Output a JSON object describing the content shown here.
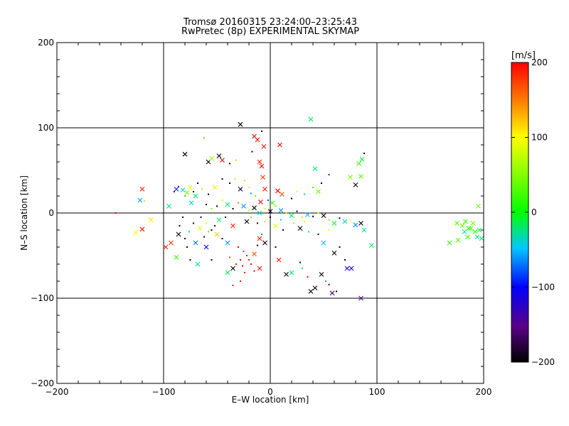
{
  "chart_data": {
    "type": "scatter",
    "title": "Tromsø 20160315 23:24:00–23:25:43",
    "subtitle": "RwPretec (8p) EXPERIMENTAL SKYMAP",
    "xlabel": "E–W location [km]",
    "ylabel": "N–S location [km]",
    "xlim": [
      -200,
      200
    ],
    "ylim": [
      -200,
      200
    ],
    "xticks": [
      -200,
      -100,
      0,
      100,
      200
    ],
    "yticks": [
      -200,
      -100,
      0,
      100,
      200
    ],
    "grid": true,
    "colorbar": {
      "label": "[m/s]",
      "min": -200,
      "max": 200,
      "ticks": [
        -200,
        -100,
        0,
        100,
        200
      ],
      "colormap": "rainbow (black-purple-blue-cyan-green-yellow-red)"
    },
    "markers": [
      "dot",
      "x"
    ],
    "points": [
      [
        -145,
        0,
        200,
        "d"
      ],
      [
        -120,
        28,
        190,
        "x"
      ],
      [
        -122,
        15,
        -60,
        "x"
      ],
      [
        -118,
        14,
        60,
        "d"
      ],
      [
        -112,
        -8,
        110,
        "x"
      ],
      [
        -120,
        -19,
        190,
        "x"
      ],
      [
        -126,
        -23,
        100,
        "x"
      ],
      [
        -98,
        -40,
        190,
        "x"
      ],
      [
        -93,
        -35,
        180,
        "x"
      ],
      [
        -88,
        -52,
        20,
        "x"
      ],
      [
        -95,
        8,
        -30,
        "x"
      ],
      [
        -88,
        28,
        -90,
        "x"
      ],
      [
        -90,
        25,
        -100,
        "d"
      ],
      [
        -86,
        31,
        -150,
        "d"
      ],
      [
        -82,
        27,
        -40,
        "x"
      ],
      [
        -80,
        20,
        -30,
        "d"
      ],
      [
        -78,
        24,
        50,
        "x"
      ],
      [
        -75,
        30,
        90,
        "x"
      ],
      [
        -72,
        25,
        -200,
        "d"
      ],
      [
        -70,
        20,
        -20,
        "x"
      ],
      [
        -80,
        69,
        -200,
        "x"
      ],
      [
        -62,
        88,
        150,
        "d"
      ],
      [
        -58,
        60,
        -200,
        "x"
      ],
      [
        -55,
        64,
        60,
        "x"
      ],
      [
        -48,
        67,
        -200,
        "x"
      ],
      [
        -45,
        62,
        200,
        "x"
      ],
      [
        -38,
        58,
        -200,
        "d"
      ],
      [
        -32,
        62,
        120,
        "d"
      ],
      [
        -28,
        104,
        -200,
        "x"
      ],
      [
        -17,
        72,
        -200,
        "d"
      ],
      [
        -15,
        90,
        200,
        "x"
      ],
      [
        -12,
        86,
        190,
        "x"
      ],
      [
        -6,
        78,
        190,
        "x"
      ],
      [
        -8,
        96,
        -200,
        "d"
      ],
      [
        -10,
        60,
        190,
        "x"
      ],
      [
        -8,
        55,
        200,
        "x"
      ],
      [
        -7,
        42,
        180,
        "x"
      ],
      [
        -5,
        28,
        190,
        "x"
      ],
      [
        -9,
        13,
        200,
        "x"
      ],
      [
        9,
        80,
        200,
        "x"
      ],
      [
        7,
        26,
        200,
        "x"
      ],
      [
        11,
        22,
        170,
        "x"
      ],
      [
        -20,
        30,
        100,
        "d"
      ],
      [
        -18,
        23,
        -60,
        "d"
      ],
      [
        -14,
        20,
        40,
        "d"
      ],
      [
        20,
        17,
        -200,
        "d"
      ],
      [
        25,
        25,
        90,
        "d"
      ],
      [
        32,
        22,
        -20,
        "d"
      ],
      [
        40,
        30,
        20,
        "d"
      ],
      [
        45,
        25,
        40,
        "x"
      ],
      [
        38,
        110,
        -20,
        "x"
      ],
      [
        42,
        52,
        -20,
        "x"
      ],
      [
        48,
        35,
        -200,
        "d"
      ],
      [
        55,
        45,
        -150,
        "d"
      ],
      [
        75,
        42,
        40,
        "x"
      ],
      [
        85,
        43,
        30,
        "x"
      ],
      [
        83,
        58,
        20,
        "x"
      ],
      [
        86,
        63,
        -10,
        "x"
      ],
      [
        88,
        70,
        -200,
        "d"
      ],
      [
        80,
        33,
        -200,
        "x"
      ],
      [
        -60,
        10,
        -200,
        "d"
      ],
      [
        -55,
        5,
        50,
        "d"
      ],
      [
        -50,
        8,
        -200,
        "d"
      ],
      [
        -45,
        15,
        110,
        "d"
      ],
      [
        -40,
        10,
        -20,
        "x"
      ],
      [
        -35,
        5,
        -200,
        "d"
      ],
      [
        -30,
        12,
        150,
        "d"
      ],
      [
        -25,
        8,
        -60,
        "x"
      ],
      [
        -20,
        3,
        60,
        "d"
      ],
      [
        -15,
        6,
        -200,
        "x"
      ],
      [
        -10,
        0,
        -30,
        "x"
      ],
      [
        -5,
        5,
        90,
        "d"
      ],
      [
        0,
        2,
        -200,
        "x"
      ],
      [
        5,
        8,
        40,
        "d"
      ],
      [
        10,
        3,
        -60,
        "x"
      ],
      [
        15,
        0,
        120,
        "d"
      ],
      [
        20,
        -3,
        -20,
        "x"
      ],
      [
        25,
        2,
        -200,
        "d"
      ],
      [
        30,
        -5,
        80,
        "d"
      ],
      [
        35,
        -2,
        -50,
        "x"
      ],
      [
        40,
        -4,
        -200,
        "d"
      ],
      [
        45,
        0,
        100,
        "d"
      ],
      [
        50,
        -3,
        -200,
        "x"
      ],
      [
        55,
        -8,
        40,
        "d"
      ],
      [
        60,
        -12,
        -10,
        "x"
      ],
      [
        65,
        -6,
        -200,
        "d"
      ],
      [
        70,
        -10,
        -40,
        "x"
      ],
      [
        75,
        -8,
        90,
        "d"
      ],
      [
        80,
        -14,
        -60,
        "x"
      ],
      [
        85,
        -12,
        -200,
        "x"
      ],
      [
        88,
        -20,
        -30,
        "x"
      ],
      [
        95,
        -38,
        -20,
        "x"
      ],
      [
        -65,
        -5,
        -200,
        "d"
      ],
      [
        -60,
        -12,
        80,
        "d"
      ],
      [
        -55,
        -20,
        -200,
        "d"
      ],
      [
        -50,
        -25,
        120,
        "x"
      ],
      [
        -45,
        -30,
        -200,
        "d"
      ],
      [
        -40,
        -35,
        -60,
        "x"
      ],
      [
        -35,
        -15,
        190,
        "x"
      ],
      [
        -30,
        -40,
        200,
        "d"
      ],
      [
        -25,
        -45,
        180,
        "d"
      ],
      [
        -22,
        -50,
        200,
        "d"
      ],
      [
        -20,
        -55,
        190,
        "d"
      ],
      [
        -18,
        -60,
        200,
        "d"
      ],
      [
        -15,
        -48,
        170,
        "x"
      ],
      [
        -12,
        -38,
        -200,
        "d"
      ],
      [
        -10,
        -30,
        190,
        "x"
      ],
      [
        -8,
        -25,
        -60,
        "d"
      ],
      [
        -5,
        -35,
        -200,
        "x"
      ],
      [
        -28,
        -55,
        200,
        "d"
      ],
      [
        -32,
        -60,
        190,
        "d"
      ],
      [
        -26,
        -62,
        200,
        "d"
      ],
      [
        -24,
        -70,
        190,
        "d"
      ],
      [
        -38,
        -52,
        170,
        "d"
      ],
      [
        -35,
        -65,
        -200,
        "x"
      ],
      [
        -28,
        -80,
        200,
        "d"
      ],
      [
        -35,
        -85,
        190,
        "d"
      ],
      [
        -40,
        -70,
        -20,
        "x"
      ],
      [
        -55,
        -55,
        -200,
        "d"
      ],
      [
        -60,
        -40,
        -100,
        "x"
      ],
      [
        -70,
        -35,
        -70,
        "x"
      ],
      [
        -75,
        -55,
        -200,
        "d"
      ],
      [
        -80,
        -30,
        -200,
        "d"
      ],
      [
        -85,
        -15,
        -200,
        "d"
      ],
      [
        -68,
        -60,
        -30,
        "x"
      ],
      [
        -15,
        -68,
        200,
        "d"
      ],
      [
        -10,
        -65,
        190,
        "x"
      ],
      [
        5,
        -40,
        -200,
        "d"
      ],
      [
        8,
        -55,
        190,
        "x"
      ],
      [
        15,
        -72,
        -200,
        "x"
      ],
      [
        20,
        -70,
        -20,
        "x"
      ],
      [
        28,
        -58,
        -200,
        "d"
      ],
      [
        30,
        -65,
        -20,
        "d"
      ],
      [
        35,
        -75,
        200,
        "d"
      ],
      [
        38,
        -92,
        -200,
        "x"
      ],
      [
        42,
        -88,
        -200,
        "x"
      ],
      [
        48,
        -72,
        -200,
        "x"
      ],
      [
        52,
        -80,
        -60,
        "d"
      ],
      [
        55,
        -84,
        -100,
        "d"
      ],
      [
        58,
        -94,
        -160,
        "x"
      ],
      [
        62,
        -92,
        -200,
        "d"
      ],
      [
        60,
        -47,
        -200,
        "x"
      ],
      [
        65,
        -40,
        -200,
        "d"
      ],
      [
        72,
        -65,
        -120,
        "x"
      ],
      [
        76,
        -65,
        -120,
        "x"
      ],
      [
        85,
        -100,
        -150,
        "x"
      ],
      [
        70,
        -55,
        -200,
        "d"
      ],
      [
        50,
        -35,
        -50,
        "x"
      ],
      [
        45,
        -25,
        -200,
        "d"
      ],
      [
        55,
        -20,
        90,
        "d"
      ],
      [
        -5,
        -10,
        60,
        "d"
      ],
      [
        0,
        -5,
        -200,
        "d"
      ],
      [
        5,
        -15,
        90,
        "x"
      ],
      [
        10,
        -8,
        -50,
        "d"
      ],
      [
        -2,
        15,
        -80,
        "d"
      ],
      [
        2,
        12,
        20,
        "x"
      ],
      [
        -12,
        -12,
        -200,
        "d"
      ],
      [
        -18,
        -5,
        40,
        "d"
      ],
      [
        -22,
        -10,
        -200,
        "x"
      ],
      [
        12,
        -20,
        -200,
        "d"
      ],
      [
        22,
        -12,
        60,
        "d"
      ],
      [
        28,
        -18,
        -200,
        "x"
      ],
      [
        32,
        -10,
        110,
        "d"
      ],
      [
        36,
        -22,
        -30,
        "d"
      ],
      [
        -42,
        -5,
        -200,
        "d"
      ],
      [
        -48,
        -8,
        -20,
        "x"
      ],
      [
        -52,
        -15,
        -200,
        "d"
      ],
      [
        -58,
        -22,
        30,
        "d"
      ],
      [
        -62,
        -28,
        -200,
        "d"
      ],
      [
        -66,
        -18,
        90,
        "x"
      ],
      [
        -72,
        -12,
        -200,
        "d"
      ],
      [
        -76,
        -22,
        -50,
        "d"
      ],
      [
        -82,
        -5,
        -200,
        "d"
      ],
      [
        -86,
        -25,
        -200,
        "x"
      ],
      [
        -78,
        -40,
        -200,
        "d"
      ],
      [
        -38,
        35,
        -200,
        "d"
      ],
      [
        -33,
        40,
        120,
        "d"
      ],
      [
        -28,
        28,
        -200,
        "x"
      ],
      [
        -24,
        38,
        60,
        "d"
      ],
      [
        -45,
        40,
        -200,
        "d"
      ],
      [
        -52,
        30,
        90,
        "x"
      ],
      [
        -58,
        22,
        -200,
        "d"
      ],
      [
        -64,
        28,
        60,
        "d"
      ],
      [
        -68,
        35,
        -200,
        "d"
      ],
      [
        -74,
        12,
        -40,
        "x"
      ],
      [
        168,
        -35,
        20,
        "x"
      ],
      [
        175,
        -12,
        30,
        "x"
      ],
      [
        180,
        -15,
        40,
        "x"
      ],
      [
        182,
        -22,
        -30,
        "x"
      ],
      [
        185,
        -28,
        20,
        "x"
      ],
      [
        188,
        -18,
        30,
        "x"
      ],
      [
        190,
        -12,
        40,
        "x"
      ],
      [
        192,
        -22,
        20,
        "x"
      ],
      [
        194,
        -28,
        -30,
        "x"
      ],
      [
        195,
        8,
        40,
        "x"
      ],
      [
        196,
        -20,
        -10,
        "x"
      ],
      [
        198,
        -30,
        -20,
        "x"
      ],
      [
        176,
        -32,
        30,
        "x"
      ],
      [
        186,
        -18,
        10,
        "x"
      ],
      [
        183,
        -10,
        20,
        "x"
      ]
    ]
  }
}
